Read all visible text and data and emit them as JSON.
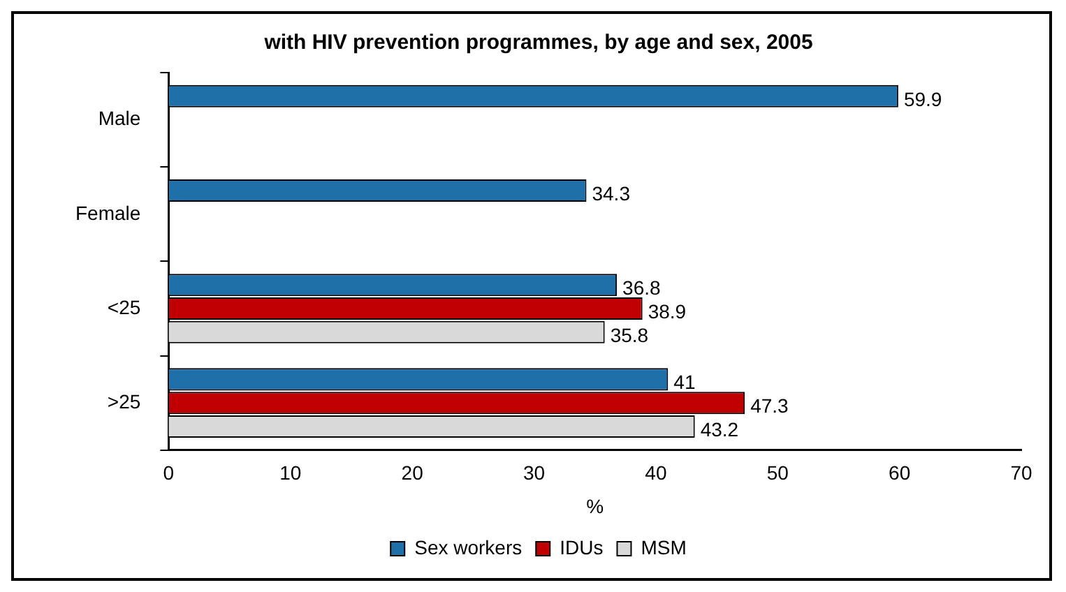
{
  "chart_data": {
    "type": "bar",
    "orientation": "horizontal",
    "title": "with HIV prevention programmes, by age and sex, 2005",
    "xlabel": "%",
    "categories": [
      "Male",
      "Female",
      "<25",
      ">25"
    ],
    "series": [
      {
        "name": "Sex workers",
        "color": "#1f6fa8",
        "values": [
          59.9,
          34.3,
          36.8,
          41
        ]
      },
      {
        "name": "IDUs",
        "color": "#c00000",
        "values": [
          null,
          null,
          38.9,
          47.3
        ]
      },
      {
        "name": "MSM",
        "color": "#d9d9d9",
        "values": [
          null,
          null,
          35.8,
          43.2
        ]
      }
    ],
    "xlim": [
      0,
      70
    ],
    "xticks": [
      0,
      10,
      20,
      30,
      40,
      50,
      60,
      70
    ],
    "grid": false,
    "legend": "bottom",
    "data_labels": true
  }
}
